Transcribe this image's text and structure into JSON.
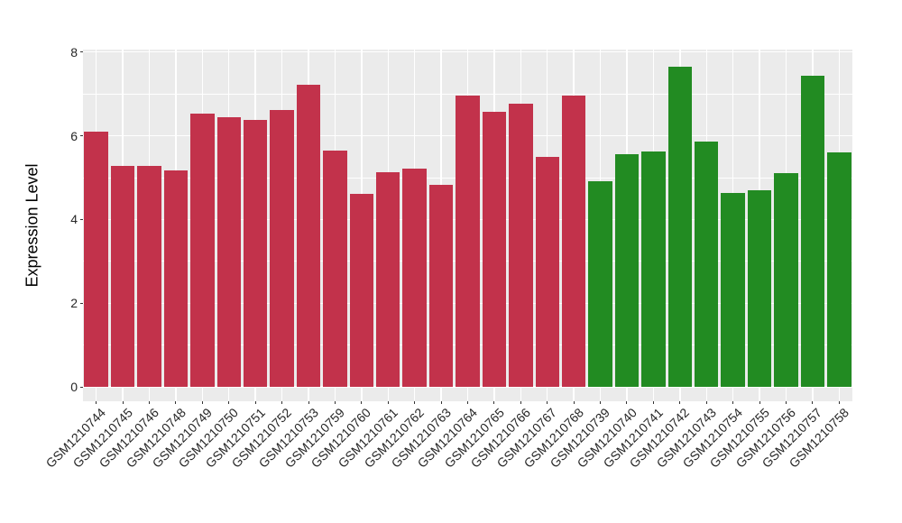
{
  "chart_data": {
    "type": "bar",
    "title": "",
    "xlabel": "",
    "ylabel": "Expression Level",
    "ylim": [
      0,
      8
    ],
    "yticks_major": [
      0,
      2,
      4,
      6,
      8
    ],
    "yticks_minor": [
      1,
      3,
      5,
      7
    ],
    "x_tick_angle": 45,
    "grid": "on",
    "legend_position": "none",
    "categories": [
      "GSM1210744",
      "GSM1210745",
      "GSM1210746",
      "GSM1210748",
      "GSM1210749",
      "GSM1210750",
      "GSM1210751",
      "GSM1210752",
      "GSM1210753",
      "GSM1210759",
      "GSM1210760",
      "GSM1210761",
      "GSM1210762",
      "GSM1210763",
      "GSM1210764",
      "GSM1210765",
      "GSM1210766",
      "GSM1210767",
      "GSM1210768",
      "GSM1210739",
      "GSM1210740",
      "GSM1210741",
      "GSM1210742",
      "GSM1210743",
      "GSM1210754",
      "GSM1210755",
      "GSM1210756",
      "GSM1210757",
      "GSM1210758"
    ],
    "values": [
      6.09,
      5.27,
      5.27,
      5.18,
      6.52,
      6.45,
      6.39,
      6.62,
      7.23,
      5.64,
      4.62,
      5.12,
      5.21,
      4.82,
      6.97,
      6.57,
      6.77,
      5.49,
      6.97,
      4.92,
      5.55,
      5.62,
      7.65,
      5.87,
      4.64,
      4.69,
      5.1,
      7.43,
      5.61
    ],
    "groups": [
      "red",
      "red",
      "red",
      "red",
      "red",
      "red",
      "red",
      "red",
      "red",
      "red",
      "red",
      "red",
      "red",
      "red",
      "red",
      "red",
      "red",
      "red",
      "red",
      "green",
      "green",
      "green",
      "green",
      "green",
      "green",
      "green",
      "green",
      "green",
      "green"
    ],
    "group_colors": {
      "red": "#C2324B",
      "green": "#228B22"
    },
    "colors": {
      "plot_background": "#EBEBEB",
      "grid": "#FFFFFF",
      "axis_text": "#262626",
      "tick_mark": "#333333"
    },
    "bar_width_fraction": 0.9
  }
}
